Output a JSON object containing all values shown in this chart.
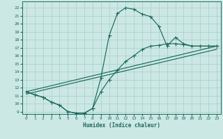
{
  "xlabel": "Humidex (Indice chaleur)",
  "bg_color": "#cce8e5",
  "line_color": "#1a6b5a",
  "grid_color": "#a8ccca",
  "xlim": [
    -0.5,
    23.5
  ],
  "ylim": [
    8.7,
    22.8
  ],
  "xticks": [
    0,
    1,
    2,
    3,
    4,
    5,
    6,
    7,
    8,
    9,
    10,
    11,
    12,
    13,
    14,
    15,
    16,
    17,
    18,
    19,
    20,
    21,
    22,
    23
  ],
  "yticks": [
    9,
    10,
    11,
    12,
    13,
    14,
    15,
    16,
    17,
    18,
    19,
    20,
    21,
    22
  ],
  "curve1_x": [
    0,
    1,
    2,
    3,
    4,
    5,
    6,
    7,
    8,
    9,
    10,
    11,
    12,
    13,
    14,
    15,
    16,
    17,
    18,
    19,
    20,
    21,
    22,
    23
  ],
  "curve1_y": [
    11.5,
    11.1,
    10.8,
    10.2,
    9.8,
    9.0,
    8.8,
    8.8,
    9.4,
    13.2,
    18.5,
    21.3,
    22.0,
    21.8,
    21.2,
    20.9,
    19.7,
    17.2,
    18.3,
    17.5,
    17.2,
    17.2,
    17.2,
    17.2
  ],
  "curve2_x": [
    0,
    1,
    2,
    3,
    4,
    5,
    6,
    7,
    8,
    9,
    10,
    11,
    12,
    13,
    14,
    15,
    16,
    17,
    18,
    19,
    20,
    21,
    22,
    23
  ],
  "curve2_y": [
    11.5,
    11.1,
    10.8,
    10.2,
    9.8,
    9.0,
    8.8,
    8.8,
    9.4,
    11.5,
    13.0,
    14.2,
    15.3,
    16.0,
    16.8,
    17.2,
    17.3,
    17.5,
    17.5,
    17.4,
    17.2,
    17.2,
    17.2,
    17.2
  ],
  "curve3_x": [
    0,
    23
  ],
  "curve3_y": [
    11.5,
    17.2
  ],
  "curve4_x": [
    0,
    23
  ],
  "curve4_y": [
    11.5,
    17.2
  ],
  "linewidth": 0.85,
  "marker_size": 2.0
}
